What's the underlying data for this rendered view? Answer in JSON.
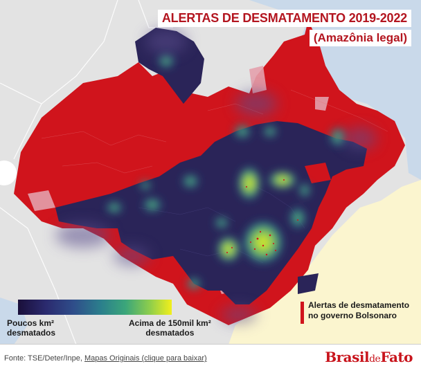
{
  "title": "ALERTAS DE DESMATAMENTO 2019-2022",
  "subtitle": "(Amazônia legal)",
  "legend": {
    "low_line1": "Poucos km²",
    "low_line2": "desmatados",
    "high_line1": "Acima de 150mil km²",
    "high_line2": "desmatados",
    "gradient_start": "#1a0f3a",
    "gradient_end": "#f2ef1c"
  },
  "alert_legend": {
    "line1": "Alertas de desmatamento",
    "line2": "no governo Bolsonaro",
    "color": "#d0141c"
  },
  "footer": {
    "source_prefix": "Fonte: TSE/Deter/Inpe,",
    "link_text": "Mapas Originais (clique para baixar)"
  },
  "logo": {
    "part1": "Brasil",
    "part2": "de",
    "part3": "Fato"
  },
  "colors": {
    "alert_red": "#d0141c",
    "density_dark": "#2a2458",
    "outside_gray": "#e2e2e2",
    "ocean": "#c9d9ea",
    "cerrado": "#fbf5cf"
  }
}
